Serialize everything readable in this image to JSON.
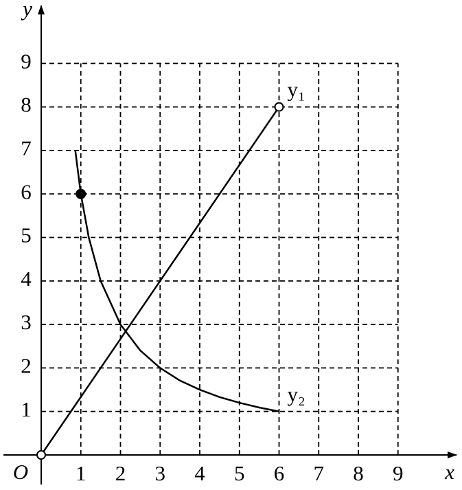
{
  "chart_data": {
    "type": "line",
    "x_label": "x",
    "y_label": "y",
    "origin_label": "O",
    "xlim": [
      0,
      10.5
    ],
    "ylim": [
      0,
      10.2
    ],
    "xticks": [
      1,
      2,
      3,
      4,
      5,
      6,
      7,
      8,
      9
    ],
    "yticks": [
      1,
      2,
      3,
      4,
      5,
      6,
      7,
      8,
      9
    ],
    "grid": true,
    "series": [
      {
        "name": "y₁",
        "color": "#000000",
        "x": [
          0,
          6
        ],
        "values": [
          0,
          8
        ],
        "marker_style": [
          "open",
          "open"
        ]
      },
      {
        "name": "y₂",
        "color": "#000000",
        "x": [
          0.86,
          1,
          1.2,
          1.5,
          2,
          2.5,
          3,
          3.5,
          4,
          4.5,
          5,
          5.5,
          6
        ],
        "values": [
          7,
          6,
          5,
          4,
          3,
          2.4,
          2,
          1.71,
          1.5,
          1.33,
          1.2,
          1.09,
          1
        ],
        "marker_style": [
          null,
          "filled",
          null,
          null,
          null,
          null,
          null,
          null,
          null,
          null,
          null,
          null,
          null
        ]
      }
    ]
  }
}
